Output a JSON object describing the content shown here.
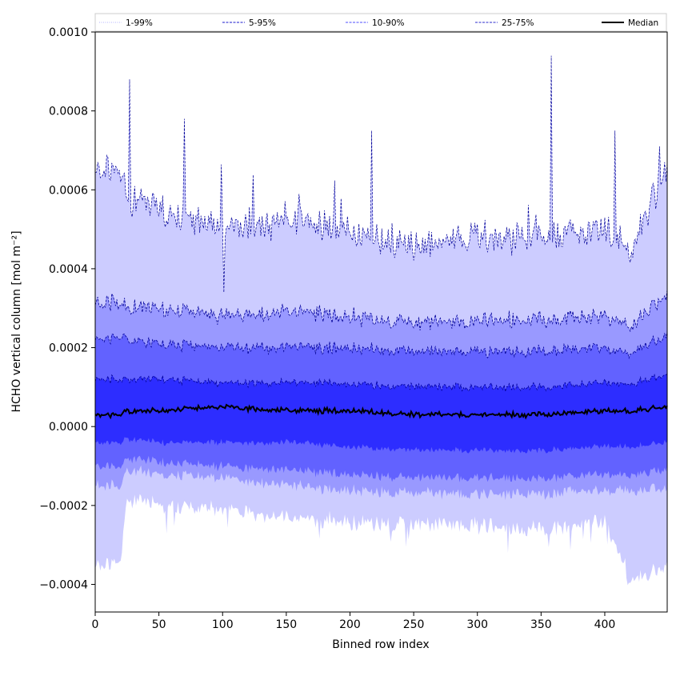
{
  "chart_data": {
    "type": "area",
    "xlabel": "Binned row index",
    "ylabel": "HCHO vertical column [mol m⁻²]",
    "xlim": [
      0,
      449
    ],
    "ylim": [
      -0.00047,
      0.001
    ],
    "x_ticks": [
      {
        "value": 0,
        "label": "0"
      },
      {
        "value": 50,
        "label": "50"
      },
      {
        "value": 100,
        "label": "100"
      },
      {
        "value": 150,
        "label": "150"
      },
      {
        "value": 200,
        "label": "200"
      },
      {
        "value": 250,
        "label": "250"
      },
      {
        "value": 300,
        "label": "300"
      },
      {
        "value": 350,
        "label": "350"
      },
      {
        "value": 400,
        "label": "400"
      }
    ],
    "y_ticks": [
      {
        "value": -0.0004,
        "label": "−0.0004"
      },
      {
        "value": -0.0002,
        "label": "−0.0002"
      },
      {
        "value": 0.0,
        "label": "0.0000"
      },
      {
        "value": 0.0002,
        "label": "0.0002"
      },
      {
        "value": 0.0004,
        "label": "0.0004"
      },
      {
        "value": 0.0006,
        "label": "0.0006"
      },
      {
        "value": 0.0008,
        "label": "0.0008"
      },
      {
        "value": 0.001,
        "label": "0.0010"
      }
    ],
    "grid": false,
    "legend_position": "top, above plot",
    "legend": [
      {
        "label": "1-99%",
        "style": "dotted",
        "color": "#b3b3ff"
      },
      {
        "label": "5-95%",
        "style": "dashed",
        "color": "#1a1acc"
      },
      {
        "label": "10-90%",
        "style": "dashed",
        "color": "#4d4dff"
      },
      {
        "label": "25-75%",
        "style": "dashed",
        "color": "#2b2bcc"
      },
      {
        "label": "Median",
        "style": "solid",
        "color": "#000000"
      }
    ],
    "colors": {
      "band_1_99": "#ccccff",
      "band_5_95": "#9999ff",
      "band_10_90": "#6262ff",
      "band_25_75": "#2d2dff",
      "edge_line": "#000099",
      "median": "#000000"
    },
    "n_rows": 449,
    "approx_profile": {
      "x": [
        0,
        20,
        25,
        50,
        100,
        150,
        200,
        250,
        300,
        350,
        400,
        420,
        449
      ],
      "p99": [
        0.00065,
        0.00065,
        0.00058,
        0.00055,
        0.0005,
        0.00052,
        0.0005,
        0.00045,
        0.00048,
        0.00048,
        0.0005,
        0.00045,
        0.00065
      ],
      "p95": [
        0.00031,
        0.00032,
        0.0003,
        0.0003,
        0.00028,
        0.00029,
        0.00028,
        0.00026,
        0.00027,
        0.00027,
        0.00028,
        0.00026,
        0.00033
      ],
      "p90": [
        0.00022,
        0.00023,
        0.00022,
        0.00021,
        0.0002,
        0.0002,
        0.0002,
        0.00019,
        0.00019,
        0.00019,
        0.0002,
        0.00019,
        0.00023
      ],
      "p75": [
        0.00012,
        0.00012,
        0.00012,
        0.00012,
        0.00011,
        0.00011,
        0.00011,
        0.0001,
        0.0001,
        0.0001,
        0.00011,
        0.00011,
        0.00013
      ],
      "median": [
        3e-05,
        3e-05,
        4e-05,
        4e-05,
        5e-05,
        4e-05,
        4e-05,
        3e-05,
        3e-05,
        3e-05,
        4e-05,
        4e-05,
        5e-05
      ],
      "p25": [
        -4e-05,
        -4e-05,
        -3e-05,
        -4e-05,
        -4e-05,
        -4e-05,
        -5e-05,
        -6e-05,
        -6e-05,
        -6e-05,
        -5e-05,
        -5e-05,
        -4e-05
      ],
      "p10": [
        -0.0001,
        -0.0001,
        -8e-05,
        -9e-05,
        -0.0001,
        -0.00011,
        -0.00012,
        -0.00013,
        -0.00013,
        -0.00013,
        -0.00012,
        -0.00012,
        -0.00011
      ],
      "p5": [
        -0.00015,
        -0.00015,
        -0.00011,
        -0.00012,
        -0.00013,
        -0.00015,
        -0.00016,
        -0.00017,
        -0.00017,
        -0.00017,
        -0.00016,
        -0.00016,
        -0.00016
      ],
      "p1": [
        -0.00035,
        -0.00034,
        -0.00018,
        -0.0002,
        -0.00021,
        -0.00023,
        -0.00024,
        -0.00025,
        -0.00025,
        -0.00026,
        -0.00024,
        -0.00038,
        -0.00036
      ]
    },
    "annotations": [
      {
        "x": 27,
        "series": "p99",
        "value": 0.00088
      },
      {
        "x": 70,
        "series": "p99",
        "value": 0.00078
      },
      {
        "x": 101,
        "series": "p99",
        "value": 0.00034
      },
      {
        "x": 217,
        "series": "p99",
        "value": 0.00075
      },
      {
        "x": 358,
        "series": "p99",
        "value": 0.00094
      },
      {
        "x": 408,
        "series": "p99",
        "value": 0.00075
      },
      {
        "x": 443,
        "series": "p99",
        "value": 0.00071
      }
    ]
  }
}
